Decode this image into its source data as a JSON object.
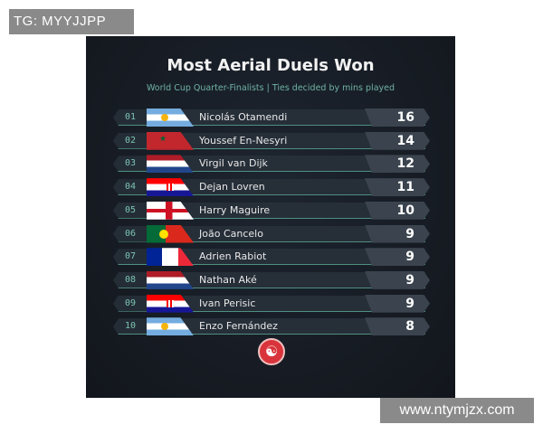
{
  "watermark_top": "TG: MYYJJPP",
  "watermark_bottom": "www.ntymjzx.com",
  "title": "Most Aerial Duels Won",
  "subtitle": "World Cup Quarter-Finalists | Ties decided by mins played",
  "rows": [
    {
      "rank": "01",
      "flag": "ar",
      "name": "Nicolás Otamendi",
      "value": "16"
    },
    {
      "rank": "02",
      "flag": "ma",
      "name": "Youssef En-Nesyri",
      "value": "14"
    },
    {
      "rank": "03",
      "flag": "nl",
      "name": "Virgil van Dijk",
      "value": "12"
    },
    {
      "rank": "04",
      "flag": "hr",
      "name": "Dejan Lovren",
      "value": "11"
    },
    {
      "rank": "05",
      "flag": "en",
      "name": "Harry Maguire",
      "value": "10"
    },
    {
      "rank": "06",
      "flag": "pt",
      "name": "João Cancelo",
      "value": "9"
    },
    {
      "rank": "07",
      "flag": "fr",
      "name": "Adrien Rabiot",
      "value": "9"
    },
    {
      "rank": "08",
      "flag": "nl",
      "name": "Nathan Aké",
      "value": "9"
    },
    {
      "rank": "09",
      "flag": "hr",
      "name": "Ivan Perisic",
      "value": "9"
    },
    {
      "rank": "10",
      "flag": "ar",
      "name": "Enzo Fernández",
      "value": "8"
    }
  ],
  "logo_icon": "brand-logo-icon"
}
